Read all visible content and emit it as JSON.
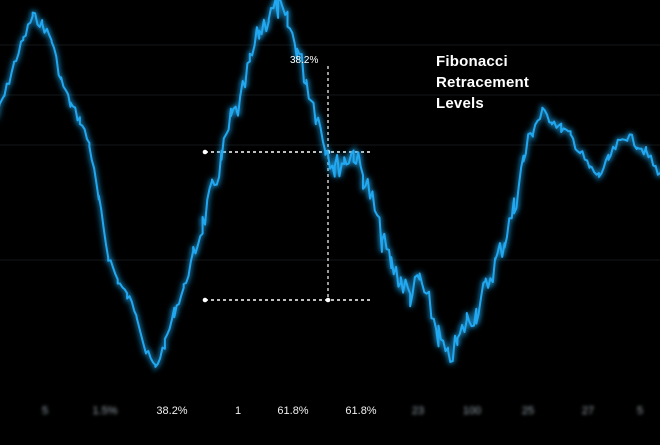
{
  "title_lines": [
    "Fibonacci",
    "Retracement",
    "Levels"
  ],
  "level_annotation": "38.2%",
  "chart_data": {
    "type": "line",
    "title": "Fibonacci Retracement Levels",
    "xlabel": "",
    "ylabel": "",
    "grid": true,
    "legend": "none",
    "line_color": "#22a8f0",
    "x_tick_labels": [
      {
        "text": "5",
        "blurred": true
      },
      {
        "text": "1.5%",
        "blurred": true
      },
      {
        "text": "38.2%",
        "blurred": false
      },
      {
        "text": "1",
        "blurred": false
      },
      {
        "text": "61.8%",
        "blurred": false
      },
      {
        "text": "61.8%",
        "blurred": false
      },
      {
        "text": "23",
        "blurred": true
      },
      {
        "text": "100",
        "blurred": true
      },
      {
        "text": "25",
        "blurred": true
      },
      {
        "text": "27",
        "blurred": true
      },
      {
        "text": "5",
        "blurred": true
      }
    ],
    "levels": [
      {
        "name": "38.2%",
        "y": 62
      },
      {
        "name": "61.8%",
        "y": 25
      }
    ],
    "series": [
      {
        "y": [
          70,
          76,
          84,
          90,
          96,
          94,
          90,
          80,
          74,
          70,
          64,
          50,
          36,
          30,
          26,
          22,
          12,
          8,
          14,
          22,
          28,
          36,
          44,
          52,
          60,
          70,
          74,
          84,
          92,
          96,
          98,
          94,
          88,
          80,
          72,
          64,
          58,
          60,
          62,
          56,
          50,
          40,
          34,
          30,
          26,
          30,
          24,
          16,
          10,
          14,
          20,
          22,
          28,
          34,
          40,
          48,
          60,
          68,
          72,
          70,
          68,
          66,
          62,
          58,
          56,
          60,
          64,
          66,
          64,
          62,
          58,
          56
        ]
      }
    ],
    "ylim": [
      0,
      100
    ]
  }
}
